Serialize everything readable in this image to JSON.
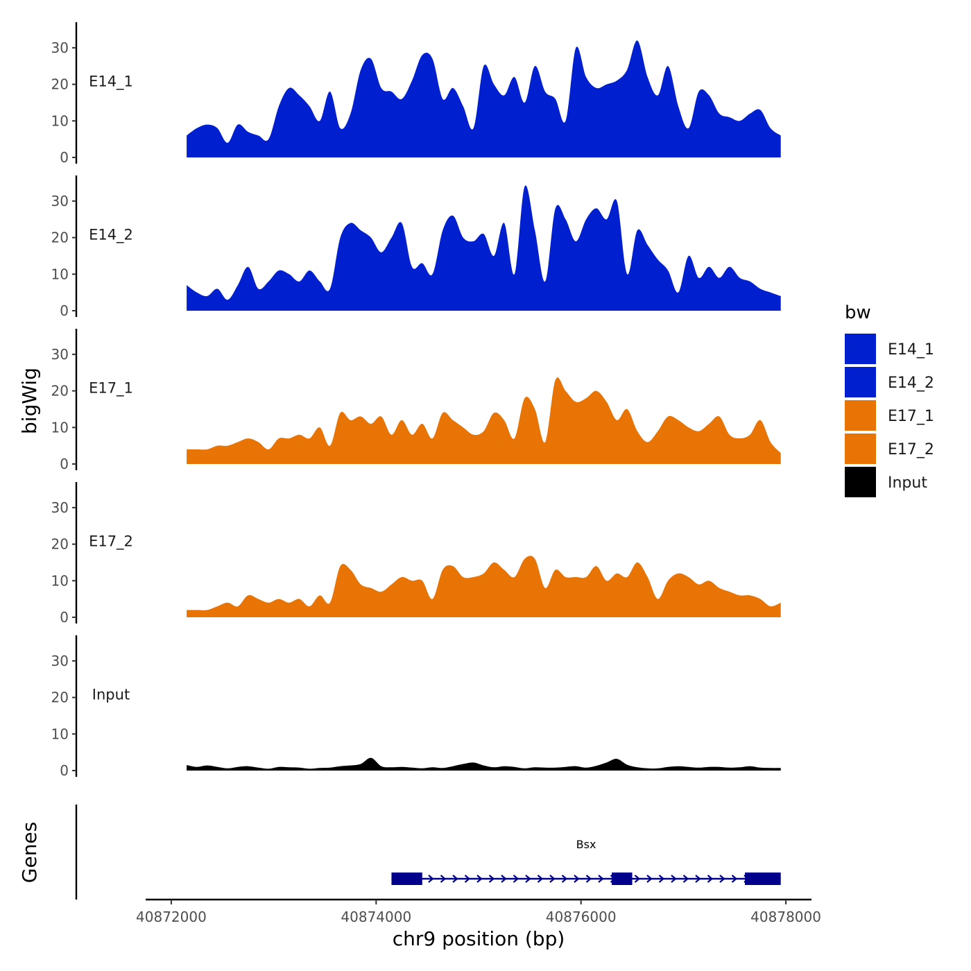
{
  "chart_data": {
    "type": "area",
    "title": "",
    "chromosome": "chr9",
    "xlabel": "chr9 position (bp)",
    "ylabel": "bigWig",
    "genes_label": "Genes",
    "xlim": [
      40871750,
      40878250
    ],
    "x_ticks": [
      40872000,
      40874000,
      40876000,
      40878000
    ],
    "x_tick_labels": [
      "40872000",
      "40874000",
      "40876000",
      "40878000"
    ],
    "ylim": [
      0,
      37
    ],
    "y_ticks": [
      0,
      10,
      20,
      30
    ],
    "y_tick_labels": [
      "0",
      "10",
      "20",
      "30"
    ],
    "legend": {
      "title": "bw",
      "position": "right",
      "items": [
        {
          "label": "E14_1",
          "color": "#0020D0"
        },
        {
          "label": "E14_2",
          "color": "#0020D0"
        },
        {
          "label": "E17_1",
          "color": "#E87405"
        },
        {
          "label": "E17_2",
          "color": "#E87405"
        },
        {
          "label": "Input",
          "color": "#000000"
        }
      ]
    },
    "x": [
      40872150,
      40872250,
      40872350,
      40872450,
      40872550,
      40872650,
      40872750,
      40872850,
      40872950,
      40873050,
      40873150,
      40873250,
      40873350,
      40873450,
      40873550,
      40873650,
      40873750,
      40873850,
      40873950,
      40874050,
      40874150,
      40874250,
      40874350,
      40874450,
      40874550,
      40874650,
      40874750,
      40874850,
      40874950,
      40875050,
      40875150,
      40875250,
      40875350,
      40875450,
      40875550,
      40875650,
      40875750,
      40875850,
      40875950,
      40876050,
      40876150,
      40876250,
      40876350,
      40876450,
      40876550,
      40876650,
      40876750,
      40876850,
      40876950,
      40877050,
      40877150,
      40877250,
      40877350,
      40877450,
      40877550,
      40877650,
      40877750,
      40877850,
      40877950
    ],
    "series": [
      {
        "name": "E14_1",
        "color": "#0020D0",
        "values": [
          6,
          8,
          9,
          8,
          4,
          9,
          7,
          6,
          5,
          14,
          19,
          17,
          14,
          10,
          18,
          8,
          12,
          24,
          27,
          19,
          18,
          16,
          21,
          28,
          27,
          16,
          19,
          14,
          8,
          25,
          20,
          17,
          22,
          15,
          25,
          18,
          16,
          10,
          30,
          22,
          19,
          20,
          21,
          24,
          32,
          22,
          17,
          25,
          14,
          8,
          18,
          17,
          12,
          11,
          10,
          12,
          13,
          8,
          6
        ]
      },
      {
        "name": "E14_2",
        "color": "#0020D0",
        "values": [
          7,
          5,
          4,
          6,
          3,
          7,
          12,
          6,
          8,
          11,
          10,
          8,
          11,
          8,
          6,
          20,
          24,
          22,
          20,
          16,
          20,
          24,
          12,
          13,
          10,
          22,
          26,
          20,
          19,
          21,
          15,
          24,
          10,
          34,
          22,
          8,
          28,
          25,
          19,
          25,
          28,
          25,
          30,
          10,
          22,
          18,
          14,
          11,
          5,
          15,
          9,
          12,
          9,
          12,
          9,
          8,
          6,
          5,
          4
        ]
      },
      {
        "name": "E17_1",
        "color": "#E87405",
        "values": [
          4,
          4,
          4,
          5,
          5,
          6,
          7,
          6,
          4,
          7,
          7,
          8,
          7,
          10,
          5,
          14,
          12,
          13,
          11,
          13,
          8,
          12,
          8,
          11,
          7,
          14,
          12,
          10,
          8,
          9,
          14,
          12,
          7,
          18,
          15,
          6,
          23,
          20,
          17,
          18,
          20,
          17,
          12,
          15,
          9,
          6,
          9,
          13,
          12,
          10,
          9,
          11,
          13,
          8,
          7,
          8,
          12,
          6,
          3
        ]
      },
      {
        "name": "E17_2",
        "color": "#E87405",
        "values": [
          2,
          2,
          2,
          3,
          4,
          3,
          6,
          5,
          4,
          5,
          4,
          5,
          3,
          6,
          4,
          14,
          13,
          9,
          8,
          7,
          9,
          11,
          10,
          10,
          5,
          13,
          14,
          11,
          11,
          12,
          15,
          13,
          11,
          16,
          16,
          8,
          13,
          11,
          11,
          11,
          14,
          10,
          12,
          11,
          15,
          11,
          5,
          10,
          12,
          11,
          9,
          10,
          8,
          7,
          6,
          6,
          5,
          3,
          4
        ]
      },
      {
        "name": "Input",
        "color": "#000000",
        "values": [
          1.5,
          1,
          1.4,
          1,
          0.6,
          1,
          1.2,
          0.8,
          0.5,
          1,
          0.9,
          0.8,
          0.5,
          0.7,
          0.8,
          1.2,
          1.4,
          1.8,
          3.5,
          1.2,
          0.9,
          1,
          0.8,
          0.6,
          0.9,
          0.7,
          1.2,
          1.8,
          2.2,
          1.4,
          0.9,
          1.2,
          1,
          0.6,
          0.9,
          0.8,
          0.8,
          1,
          1.2,
          0.8,
          1.3,
          2.2,
          3.2,
          1.6,
          0.9,
          0.6,
          0.6,
          1,
          1.2,
          1,
          0.8,
          1,
          1,
          0.8,
          0.9,
          1.2,
          0.8,
          0.7,
          0.7
        ]
      }
    ],
    "genes": [
      {
        "name": "Bsx",
        "strand": "+",
        "start": 40874150,
        "end": 40877950,
        "exons": [
          [
            40874150,
            40874450
          ],
          [
            40876300,
            40876500
          ],
          [
            40877600,
            40877950
          ]
        ]
      }
    ]
  }
}
